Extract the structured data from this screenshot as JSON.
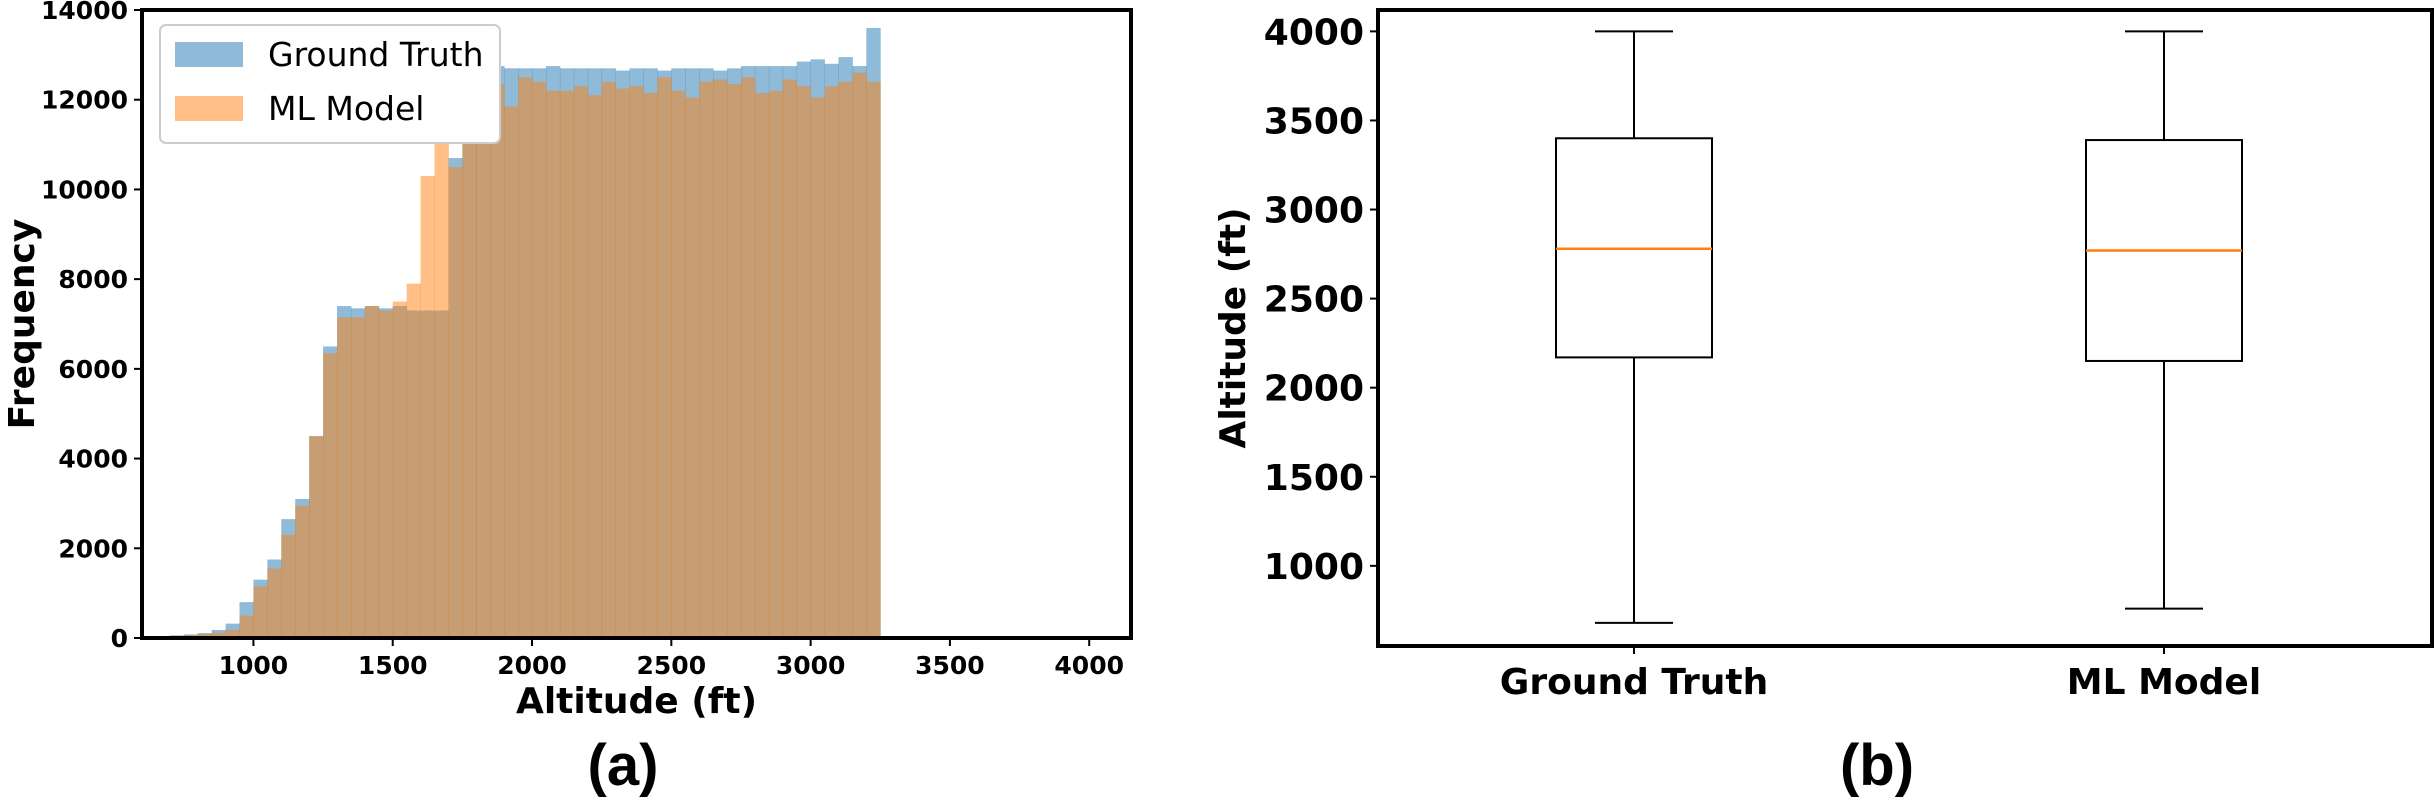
{
  "panels": {
    "a": "(a)",
    "b": "(b)"
  },
  "chart_data": [
    {
      "type": "histogram",
      "title": "",
      "xlabel": "Altitude (ft)",
      "ylabel": "Frequency",
      "xlim": [
        600,
        4150
      ],
      "ylim": [
        0,
        14000
      ],
      "xticks": [
        1000,
        1500,
        2000,
        2500,
        3000,
        3500,
        4000
      ],
      "yticks": [
        0,
        2000,
        4000,
        6000,
        8000,
        10000,
        12000,
        14000
      ],
      "legend_position": "top-left",
      "bin_edges_start": 700,
      "bin_width": 50,
      "series": [
        {
          "name": "Ground Truth",
          "color": "#1f77b4",
          "values": [
            60,
            80,
            110,
            180,
            320,
            800,
            1300,
            1750,
            2650,
            3100,
            4500,
            6500,
            7400,
            7350,
            7400,
            7350,
            7400,
            7300,
            7300,
            7300,
            10700,
            12500,
            12800,
            12750,
            12700,
            12700,
            12700,
            12750,
            12700,
            12700,
            12700,
            12700,
            12650,
            12700,
            12700,
            12650,
            12700,
            12700,
            12700,
            12650,
            12700,
            12750,
            12750,
            12750,
            12750,
            12850,
            12900,
            12800,
            12950,
            12750,
            13600
          ]
        },
        {
          "name": "ML Model",
          "color": "#ff7f0e",
          "values": [
            40,
            60,
            90,
            120,
            180,
            500,
            1150,
            1550,
            2300,
            2950,
            4500,
            6350,
            7150,
            7150,
            7400,
            7300,
            7500,
            7900,
            10300,
            12450,
            10500,
            12200,
            12250,
            12350,
            11850,
            12500,
            12400,
            12200,
            12200,
            12300,
            12100,
            12400,
            12250,
            12300,
            12150,
            12500,
            12200,
            12050,
            12400,
            12450,
            12350,
            12500,
            12150,
            12200,
            12450,
            12300,
            12050,
            12300,
            12400,
            12600,
            12400
          ]
        }
      ]
    },
    {
      "type": "box",
      "title": "",
      "xlabel": "",
      "ylabel": "Altitude (ft)",
      "ylim": [
        550,
        4120
      ],
      "yticks": [
        1000,
        1500,
        2000,
        2500,
        3000,
        3500,
        4000
      ],
      "categories": [
        "Ground Truth",
        "ML Model"
      ],
      "median_color": "#ff7f0e",
      "boxes": [
        {
          "name": "Ground Truth",
          "min": 680,
          "q1": 2170,
          "median": 2780,
          "q3": 3400,
          "max": 4000
        },
        {
          "name": "ML Model",
          "min": 760,
          "q1": 2150,
          "median": 2770,
          "q3": 3390,
          "max": 4000
        }
      ]
    }
  ]
}
